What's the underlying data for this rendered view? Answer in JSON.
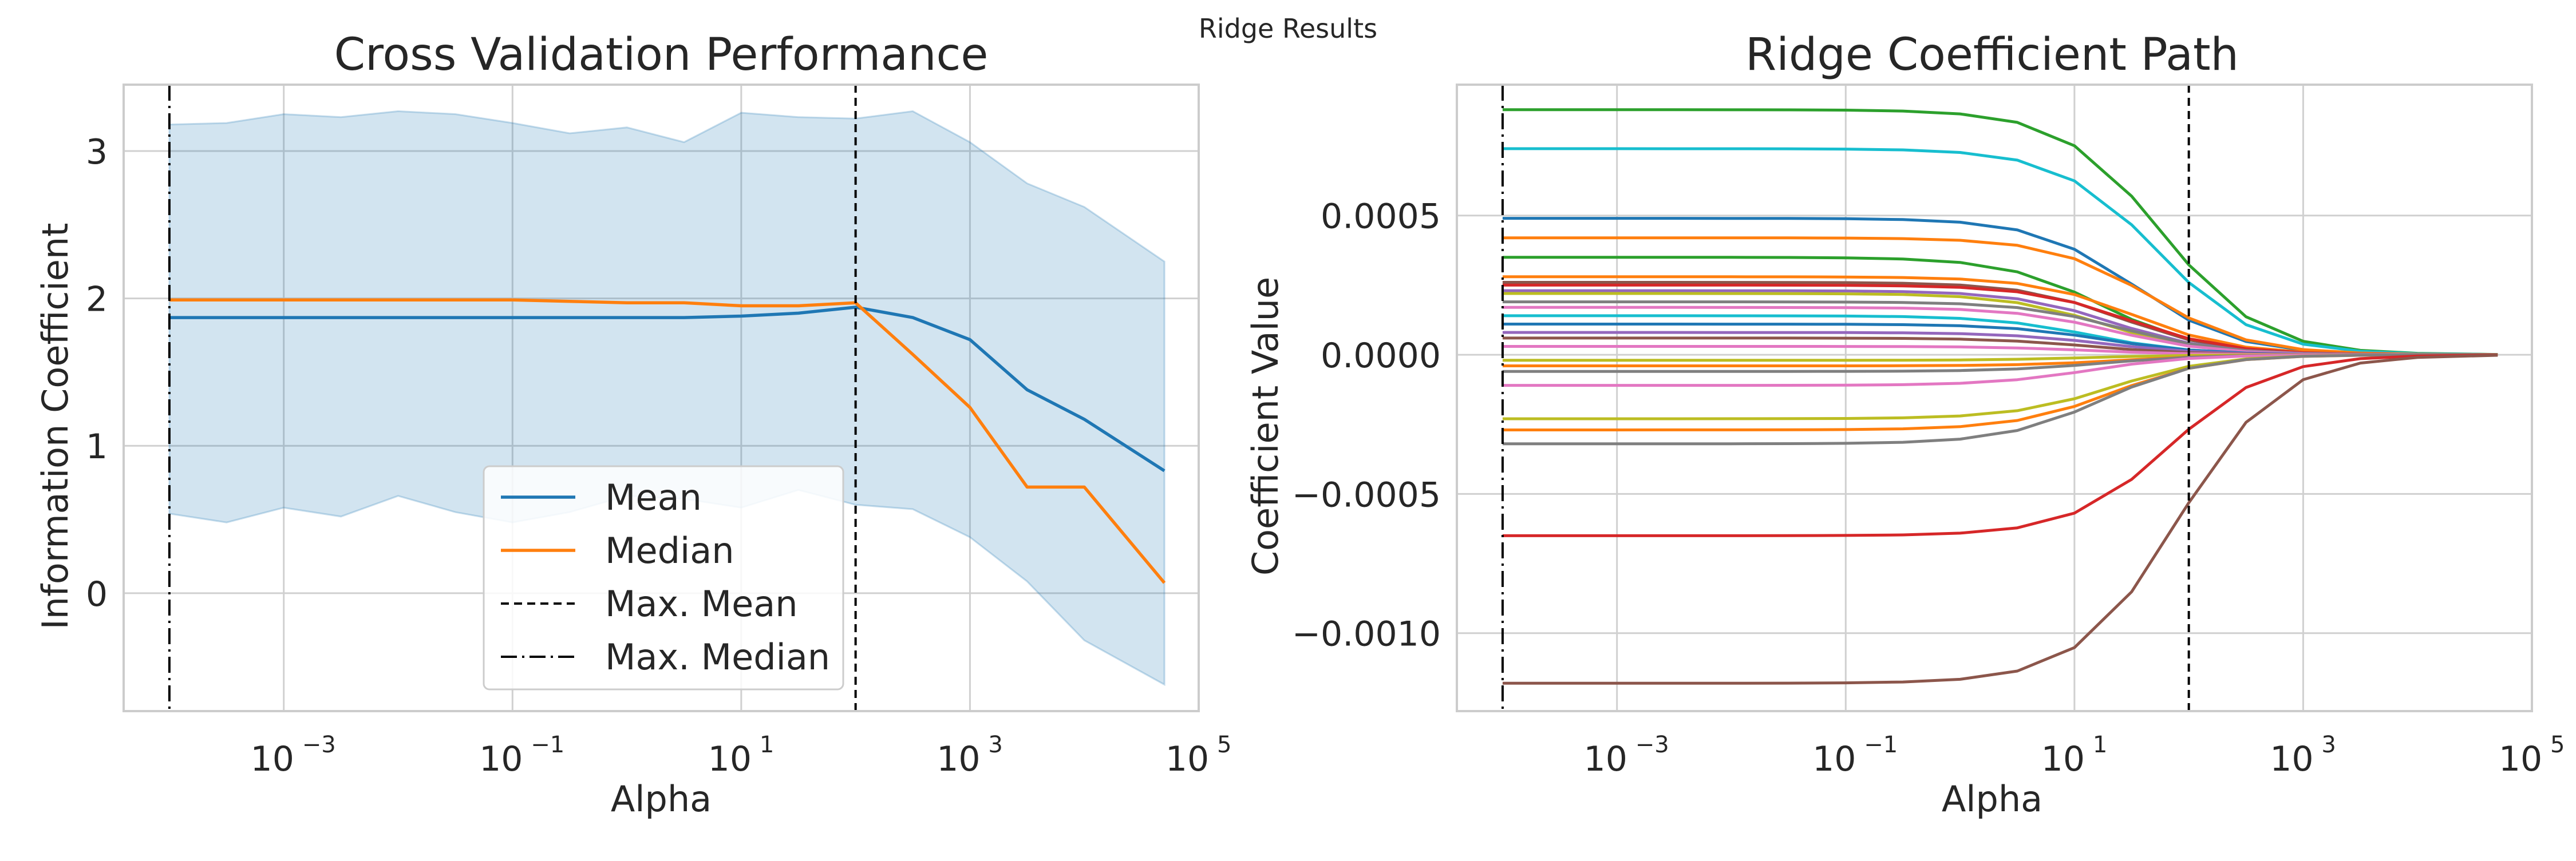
{
  "suptitle": "Ridge Results",
  "colors": {
    "mean": "#1f77b4",
    "median": "#ff7f0e",
    "band": "#1f77b4",
    "grid": "#d0d0d0",
    "frame": "#cccccc",
    "vline": "#000000"
  },
  "chart_data": [
    {
      "type": "line",
      "title": "Cross Validation Performance",
      "xlabel": "Alpha",
      "ylabel": "Information Coefficient",
      "xscale": "log",
      "xlim_exp": [
        -4.4,
        5.0
      ],
      "ylim": [
        -0.8,
        3.45
      ],
      "yticks": [
        0,
        1,
        2,
        3
      ],
      "xticks": [
        {
          "base": "10",
          "exp": "−3",
          "value": -3
        },
        {
          "base": "10",
          "exp": "−1",
          "value": -1
        },
        {
          "base": "10",
          "exp": "1",
          "value": 1
        },
        {
          "base": "10",
          "exp": "3",
          "value": 3
        },
        {
          "base": "10",
          "exp": "5",
          "value": 5
        }
      ],
      "grid": true,
      "legend_position": "lower-center",
      "x_log10": [
        -4,
        -3.5,
        -3,
        -2.5,
        -2,
        -1.5,
        -1,
        -0.5,
        0,
        0.5,
        1,
        1.5,
        2,
        2.5,
        3,
        3.5,
        4,
        4.7
      ],
      "series": [
        {
          "name": "Mean",
          "key": "mean",
          "values": [
            1.87,
            1.87,
            1.87,
            1.87,
            1.87,
            1.87,
            1.87,
            1.87,
            1.87,
            1.87,
            1.88,
            1.9,
            1.94,
            1.87,
            1.72,
            1.38,
            1.18,
            0.83
          ]
        },
        {
          "name": "Median",
          "key": "median",
          "values": [
            1.99,
            1.99,
            1.99,
            1.99,
            1.99,
            1.99,
            1.99,
            1.98,
            1.97,
            1.97,
            1.95,
            1.95,
            1.97,
            1.62,
            1.26,
            0.72,
            0.72,
            0.07
          ]
        }
      ],
      "band": {
        "upper": [
          3.18,
          3.19,
          3.25,
          3.23,
          3.27,
          3.25,
          3.19,
          3.12,
          3.16,
          3.06,
          3.26,
          3.23,
          3.22,
          3.27,
          3.06,
          2.78,
          2.62,
          2.25
        ],
        "lower": [
          0.54,
          0.48,
          0.58,
          0.52,
          0.66,
          0.55,
          0.48,
          0.55,
          0.66,
          0.64,
          0.58,
          0.7,
          0.6,
          0.57,
          0.38,
          0.08,
          -0.32,
          -0.62
        ]
      },
      "vlines": [
        {
          "name": "Max. Mean",
          "style": "dashed",
          "x_log10": 2
        },
        {
          "name": "Max. Median",
          "style": "dashdot",
          "x_log10": -4
        }
      ]
    },
    {
      "type": "line",
      "title": "Ridge Coefficient Path",
      "xlabel": "Alpha",
      "ylabel": "Coefficient Value",
      "xscale": "log",
      "xlim_exp": [
        -4.4,
        5.0
      ],
      "ylim": [
        -0.00128,
        0.00097
      ],
      "yticks": [
        -0.001,
        -0.0005,
        0,
        0.0005
      ],
      "ytick_labels": [
        "−0.0010",
        "−0.0005",
        "0.0000",
        "0.0005"
      ],
      "xticks": [
        {
          "base": "10",
          "exp": "−3",
          "value": -3
        },
        {
          "base": "10",
          "exp": "−1",
          "value": -1
        },
        {
          "base": "10",
          "exp": "1",
          "value": 1
        },
        {
          "base": "10",
          "exp": "3",
          "value": 3
        },
        {
          "base": "10",
          "exp": "5",
          "value": 5
        }
      ],
      "grid": true,
      "x_log10": [
        -4,
        -3.5,
        -3,
        -2.5,
        -2,
        -1.5,
        -1,
        -0.5,
        0,
        0.5,
        1,
        1.5,
        2,
        2.5,
        3,
        3.5,
        4,
        4.7
      ],
      "coefficient_paths": [
        {
          "color": "#2ca02c",
          "start": 0.00088,
          "rolloff": 0.0012
        },
        {
          "color": "#17becf",
          "start": 0.00074,
          "rolloff": 0.0011
        },
        {
          "color": "#1f77b4",
          "start": 0.00049,
          "rolloff": 0.0006
        },
        {
          "color": "#ff7f0e",
          "start": 0.00042,
          "rolloff": 0.0009
        },
        {
          "color": "#2ca02c",
          "start": 0.00035,
          "rolloff": 0.0002
        },
        {
          "color": "#ff7f0e",
          "start": 0.00028,
          "rolloff": 0.0006
        },
        {
          "color": "#8c564b",
          "start": 0.00026,
          "rolloff": 0.0004
        },
        {
          "color": "#d62728",
          "start": 0.00025,
          "rolloff": 0.0005
        },
        {
          "color": "#9467bd",
          "start": 0.00023,
          "rolloff": 0.0003
        },
        {
          "color": "#bcbd22",
          "start": 0.00022,
          "rolloff": 0.0002
        },
        {
          "color": "#7f7f7f",
          "start": 0.00019,
          "rolloff": 0.0004
        },
        {
          "color": "#e377c2",
          "start": 0.00017,
          "rolloff": 0.0003
        },
        {
          "color": "#17becf",
          "start": 0.00014,
          "rolloff": 0.0001
        },
        {
          "color": "#1f77b4",
          "start": 0.00011,
          "rolloff": 0.0002
        },
        {
          "color": "#9467bd",
          "start": 8e-05,
          "rolloff": 0.0002
        },
        {
          "color": "#8c564b",
          "start": 6e-05,
          "rolloff": 0.0001
        },
        {
          "color": "#e377c2",
          "start": 3e-05,
          "rolloff": 0.0001
        },
        {
          "color": "#bcbd22",
          "start": -2e-05,
          "rolloff": 0.0001
        },
        {
          "color": "#ff7f0e",
          "start": -4e-05,
          "rolloff": 0.0004
        },
        {
          "color": "#7f7f7f",
          "start": -6e-05,
          "rolloff": 0.0002
        },
        {
          "color": "#e377c2",
          "start": -0.00011,
          "rolloff": 0.0001
        },
        {
          "color": "#bcbd22",
          "start": -0.00023,
          "rolloff": 0.0003
        },
        {
          "color": "#ff7f0e",
          "start": -0.00027,
          "rolloff": 0.0003
        },
        {
          "color": "#7f7f7f",
          "start": -0.00032,
          "rolloff": 0.0002
        },
        {
          "color": "#d62728",
          "start": -0.00065,
          "rolloff": -0.0015
        },
        {
          "color": "#8c564b",
          "start": -0.00118,
          "rolloff": -0.0018
        }
      ],
      "vlines": [
        {
          "name": "Max. Mean",
          "style": "dashed",
          "x_log10": 2
        },
        {
          "name": "Max. Median",
          "style": "dashdot",
          "x_log10": -4
        }
      ]
    }
  ]
}
